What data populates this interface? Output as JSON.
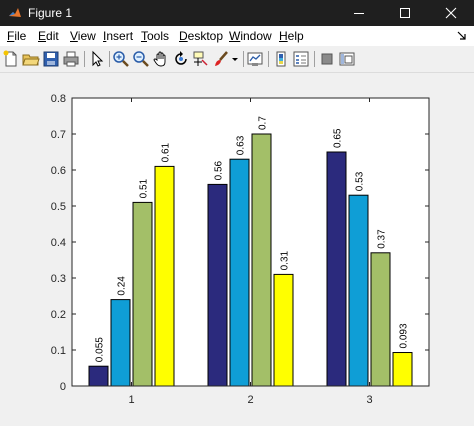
{
  "window": {
    "title": "Figure 1"
  },
  "menu": {
    "items": [
      {
        "first": "F",
        "rest": "ile"
      },
      {
        "first": "E",
        "rest": "dit"
      },
      {
        "first": "V",
        "rest": "iew"
      },
      {
        "first": "I",
        "rest": "nsert"
      },
      {
        "first": "T",
        "rest": "ools"
      },
      {
        "first": "D",
        "rest": "esktop"
      },
      {
        "first": "W",
        "rest": "indow"
      },
      {
        "first": "H",
        "rest": "elp"
      }
    ]
  },
  "toolbar": {
    "icons": [
      "new-figure-icon",
      "open-file-icon",
      "save-icon",
      "print-icon",
      "pointer-icon",
      "zoom-in-icon",
      "zoom-out-icon",
      "pan-icon",
      "rotate-icon",
      "data-cursor-icon",
      "brush-icon",
      "dropdown-arrow-icon",
      "link-plot-icon",
      "colorbar-icon",
      "legend-icon",
      "hide-plot-tools-icon",
      "show-plot-tools-icon"
    ]
  },
  "chart_data": {
    "type": "bar",
    "categories": [
      "1",
      "2",
      "3"
    ],
    "series": [
      {
        "values": [
          0.055,
          0.56,
          0.65
        ],
        "labels": [
          "0.055",
          "0.56",
          "0.65"
        ],
        "color": "#2b2a7d"
      },
      {
        "values": [
          0.24,
          0.63,
          0.53
        ],
        "labels": [
          "0.24",
          "0.63",
          "0.53"
        ],
        "color": "#0f9ed6"
      },
      {
        "values": [
          0.51,
          0.7,
          0.37
        ],
        "labels": [
          "0.51",
          "0.7",
          "0.37"
        ],
        "color": "#a3bf68"
      },
      {
        "values": [
          0.61,
          0.31,
          0.093
        ],
        "labels": [
          "0.61",
          "0.31",
          "0.093"
        ],
        "color": "#ffff00"
      }
    ],
    "yticks": [
      "0",
      "0.1",
      "0.2",
      "0.3",
      "0.4",
      "0.5",
      "0.6",
      "0.7",
      "0.8"
    ],
    "ylim": [
      0,
      0.8
    ],
    "grid": false
  }
}
